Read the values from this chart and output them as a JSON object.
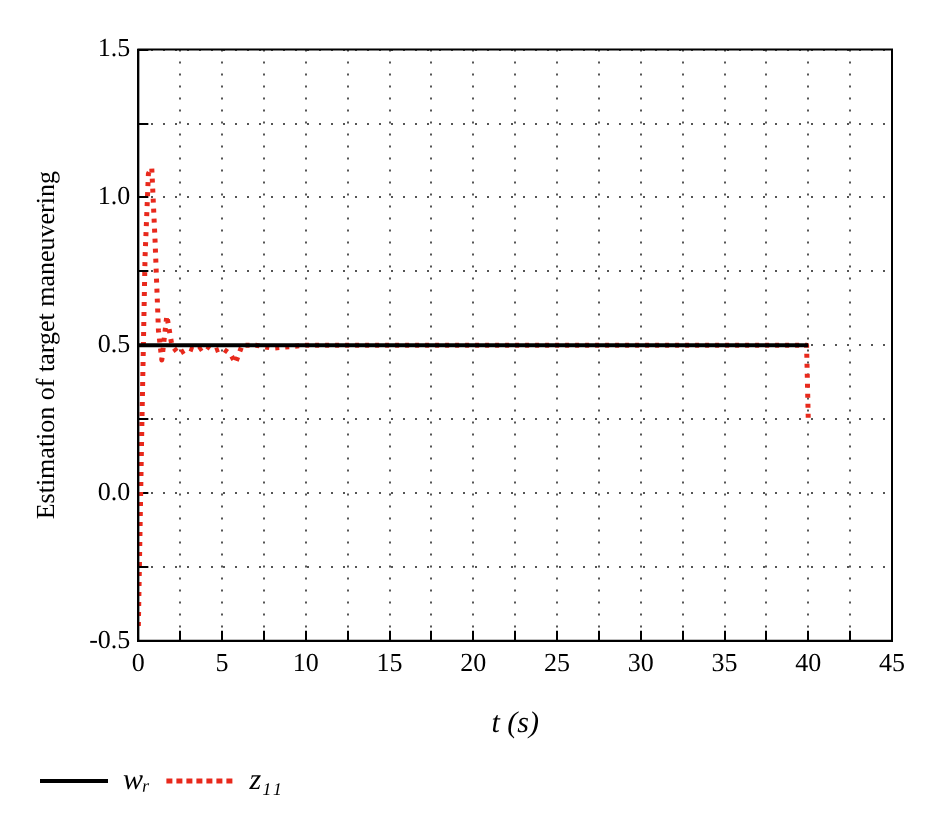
{
  "chart_data": {
    "type": "line",
    "xlabel": "t (s)",
    "ylabel": "Estimation of target maneuvering",
    "xlim": [
      0,
      45
    ],
    "xticks": [
      0,
      {
        "value": 2.5,
        "label": null
      },
      5,
      {
        "value": 7.5,
        "label": null
      },
      10,
      {
        "value": 12.5,
        "label": null
      },
      15,
      {
        "value": 17.5,
        "label": null
      },
      20,
      {
        "value": 22.5,
        "label": null
      },
      25,
      {
        "value": 27.5,
        "label": null
      },
      30,
      {
        "value": 32.5,
        "label": null
      },
      35,
      {
        "value": 37.5,
        "label": null
      },
      40,
      {
        "value": 42.5,
        "label": null
      },
      45
    ],
    "ylim": [
      -0.5,
      1.5
    ],
    "yticks": [
      -0.5,
      {
        "value": -0.25,
        "label": null
      },
      {
        "value": 0,
        "label": "0.0"
      },
      {
        "value": 0.25,
        "label": null
      },
      0.5,
      {
        "value": 0.75,
        "label": null
      },
      {
        "value": 1,
        "label": "1.0"
      },
      {
        "value": 1.25,
        "label": null
      },
      1.5
    ],
    "grid": true,
    "legend": "bottom left",
    "marker": "none",
    "series": [
      {
        "name": "wᵣ",
        "color": "#000000",
        "line_style": "solid",
        "x": [
          0,
          40
        ],
        "values": [
          0.5,
          0.5
        ]
      },
      {
        "name": "z₁₁",
        "color": "#e8291c",
        "line_style": "dotted",
        "x": [
          0,
          0.2,
          0.4,
          0.6,
          0.8,
          1.0,
          1.2,
          1.4,
          1.7,
          2.0,
          2.4,
          3,
          3.5,
          4,
          4.5,
          5,
          5.5,
          5.8,
          6.2,
          7,
          8,
          10,
          15,
          20,
          25,
          30,
          35,
          39.9,
          40
        ],
        "values": [
          -0.45,
          0.2,
          0.8,
          1.08,
          1.1,
          0.85,
          0.55,
          0.45,
          0.6,
          0.5,
          0.47,
          0.49,
          0.48,
          0.5,
          0.48,
          0.49,
          0.47,
          0.44,
          0.5,
          0.5,
          0.49,
          0.5,
          0.5,
          0.5,
          0.5,
          0.5,
          0.5,
          0.5,
          0.25
        ]
      }
    ]
  }
}
